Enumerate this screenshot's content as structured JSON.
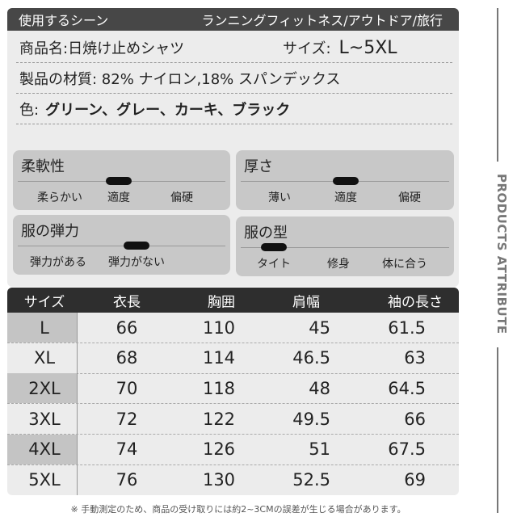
{
  "header": {
    "label": "使用するシーン",
    "value": "ランニングフィットネス/アウトドア/旅行"
  },
  "product": {
    "name": "商品名:日焼け止めシャツ",
    "size_label": "サイズ:",
    "size_value": "L~5XL"
  },
  "material": "製品の材質: 82% ナイロン,18% スパンデックス",
  "color": {
    "label": "色:",
    "value": "グリーン、グレー、カーキ、ブラック"
  },
  "attributes": [
    {
      "title": "柔軟性",
      "options": [
        "柔らかい",
        "適度",
        "偏硬"
      ],
      "selected_index": 1
    },
    {
      "title": "厚さ",
      "options": [
        "薄い",
        "適度",
        "偏硬"
      ],
      "selected_index": 1
    },
    {
      "title": "服の弾力",
      "options": [
        "弾力がある",
        "弾力がない"
      ],
      "selected_index": 1
    },
    {
      "title": "服の型",
      "options": [
        "タイト",
        "修身",
        "体に合う"
      ],
      "selected_index": 0
    }
  ],
  "size_table": {
    "headers": [
      "サイズ",
      "衣長",
      "胸囲",
      "肩幅",
      "袖の長さ"
    ],
    "rows": [
      [
        "L",
        "66",
        "110",
        "45",
        "61.5"
      ],
      [
        "XL",
        "68",
        "114",
        "46.5",
        "63"
      ],
      [
        "2XL",
        "70",
        "118",
        "48",
        "64.5"
      ],
      [
        "3XL",
        "72",
        "122",
        "49.5",
        "66"
      ],
      [
        "4XL",
        "74",
        "126",
        "51",
        "67.5"
      ],
      [
        "5XL",
        "76",
        "130",
        "52.5",
        "69"
      ]
    ]
  },
  "note": "※ 手動測定のため、商品の受け取りには約2~3CMの誤差が生じる場合があります。",
  "side_label": "PRODUCTS ATTRIBUTE"
}
